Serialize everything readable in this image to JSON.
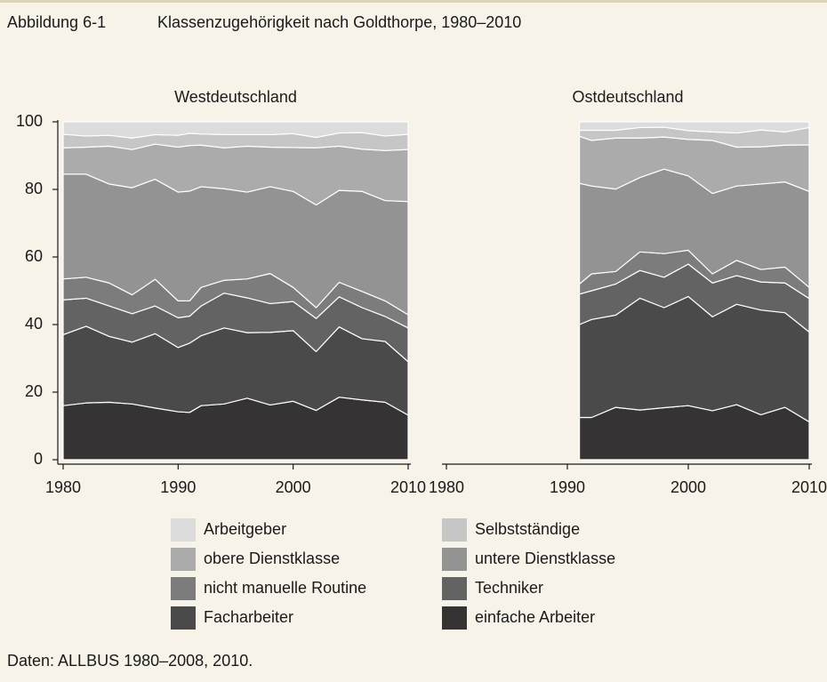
{
  "figure_label": "Abbildung 6-1",
  "caption": "Klassenzugehörigkeit nach Goldthorpe, 1980–2010",
  "source": "Daten: ALLBUS 1980–2008, 2010.",
  "chart_data": [
    {
      "type": "area",
      "title": "Westdeutschland",
      "x": [
        1980,
        1982,
        1984,
        1986,
        1988,
        1990,
        1991,
        1992,
        1994,
        1996,
        1998,
        2000,
        2002,
        2004,
        2006,
        2008,
        2010
      ],
      "xlim": [
        1980,
        2010
      ],
      "xticks": [
        1980,
        1990,
        2000,
        2010
      ],
      "ylim": [
        0,
        100
      ],
      "yticks": [
        0,
        20,
        40,
        60,
        80,
        100
      ],
      "series": [
        {
          "name": "einfache Arbeiter",
          "color": "#363334",
          "values": [
            16,
            16.8,
            17,
            16.5,
            15.3,
            14.2,
            14,
            16,
            16.5,
            18.2,
            16.2,
            17.3,
            14.6,
            18.5,
            17.7,
            17,
            13.2
          ]
        },
        {
          "name": "Facharbeiter",
          "color": "#4a4a4a",
          "values": [
            21,
            22.7,
            19.5,
            18.3,
            22,
            19,
            20.5,
            20.7,
            22.5,
            19.4,
            21.5,
            20.9,
            17.4,
            20.8,
            18.1,
            18,
            15.8
          ]
        },
        {
          "name": "Techniker",
          "color": "#636363",
          "values": [
            10.3,
            8.3,
            9,
            8.4,
            8.2,
            8.8,
            8,
            8.8,
            10.3,
            10.3,
            8.5,
            8.6,
            9.8,
            8.9,
            9.2,
            7.4,
            10
          ]
        },
        {
          "name": "nicht manuelle Routine",
          "color": "#7c7c7c",
          "values": [
            6.2,
            6.2,
            6.8,
            5.6,
            7.9,
            5,
            4.5,
            5.5,
            3.8,
            5.6,
            8.9,
            4.2,
            3.2,
            4.3,
            4.8,
            4.6,
            3.9
          ]
        },
        {
          "name": "untere Dienstklasse",
          "color": "#939393",
          "values": [
            31,
            30.5,
            29.3,
            31.7,
            29.6,
            32.2,
            32.5,
            29.8,
            27.1,
            25.7,
            25.7,
            28.4,
            30.4,
            27.2,
            29.6,
            29.7,
            33.5
          ]
        },
        {
          "name": "obere Dienstklasse",
          "color": "#ababab",
          "values": [
            7.8,
            8,
            11.2,
            11.3,
            10.4,
            13.3,
            13.5,
            12.3,
            12.1,
            13.6,
            11.7,
            13,
            16.9,
            13.1,
            12.5,
            14.8,
            15.4
          ]
        },
        {
          "name": "Selbstständige",
          "color": "#c6c6c6",
          "values": [
            4,
            3.3,
            3.2,
            3.4,
            2.8,
            3.5,
            3.6,
            3.3,
            3.9,
            3.4,
            3.7,
            4.1,
            3.1,
            3.9,
            4.9,
            4.3,
            4.5
          ]
        },
        {
          "name": "Arbeitgeber",
          "color": "#dcdcdc",
          "values": [
            3.7,
            4.2,
            4,
            4.8,
            3.8,
            4,
            3.4,
            3.6,
            3.8,
            3.8,
            3.8,
            3.5,
            4.6,
            3.3,
            3.2,
            4.2,
            3.7
          ]
        }
      ]
    },
    {
      "type": "area",
      "title": "Ostdeutschland",
      "x": [
        1991,
        1992,
        1994,
        1996,
        1998,
        2000,
        2002,
        2004,
        2006,
        2008,
        2010
      ],
      "xlim": [
        1980,
        2010
      ],
      "xticks": [
        1980,
        1990,
        2000,
        2010
      ],
      "ylim": [
        0,
        100
      ],
      "series": [
        {
          "name": "einfache Arbeiter",
          "color": "#363334",
          "values": [
            12.5,
            12.5,
            15.5,
            14.7,
            15.4,
            16,
            14.5,
            16.3,
            13.3,
            15.5,
            11.2
          ]
        },
        {
          "name": "Facharbeiter",
          "color": "#4a4a4a",
          "values": [
            27.5,
            29,
            27.3,
            33.1,
            29.6,
            32.3,
            27.8,
            29.7,
            31,
            28,
            26.6
          ]
        },
        {
          "name": "Techniker",
          "color": "#636363",
          "values": [
            9,
            8.5,
            9.2,
            8.2,
            9,
            9.6,
            10,
            8.5,
            8.3,
            8.8,
            9.9
          ]
        },
        {
          "name": "nicht manuelle Routine",
          "color": "#7c7c7c",
          "values": [
            3,
            5,
            3.7,
            5.5,
            7,
            4.1,
            2.7,
            4.5,
            3.7,
            4.7,
            3.3
          ]
        },
        {
          "name": "untere Dienstklasse",
          "color": "#939393",
          "values": [
            29.8,
            26,
            24.4,
            22,
            25,
            22,
            23.8,
            22,
            25.3,
            25.2,
            28.4
          ]
        },
        {
          "name": "obere Dienstklasse",
          "color": "#ababab",
          "values": [
            13.9,
            13.5,
            15.1,
            11.7,
            9.5,
            10.8,
            15.7,
            11.5,
            11,
            10.9,
            13.8
          ]
        },
        {
          "name": "Selbstständige",
          "color": "#c6c6c6",
          "values": [
            1.8,
            3,
            2.3,
            3.1,
            2.9,
            2.6,
            2.5,
            4.2,
            5,
            3.9,
            5.1
          ]
        },
        {
          "name": "Arbeitgeber",
          "color": "#dcdcdc",
          "values": [
            2.5,
            2.5,
            2.5,
            1.7,
            1.6,
            2.6,
            3,
            3.3,
            2.4,
            3,
            1.7
          ]
        }
      ]
    }
  ]
}
